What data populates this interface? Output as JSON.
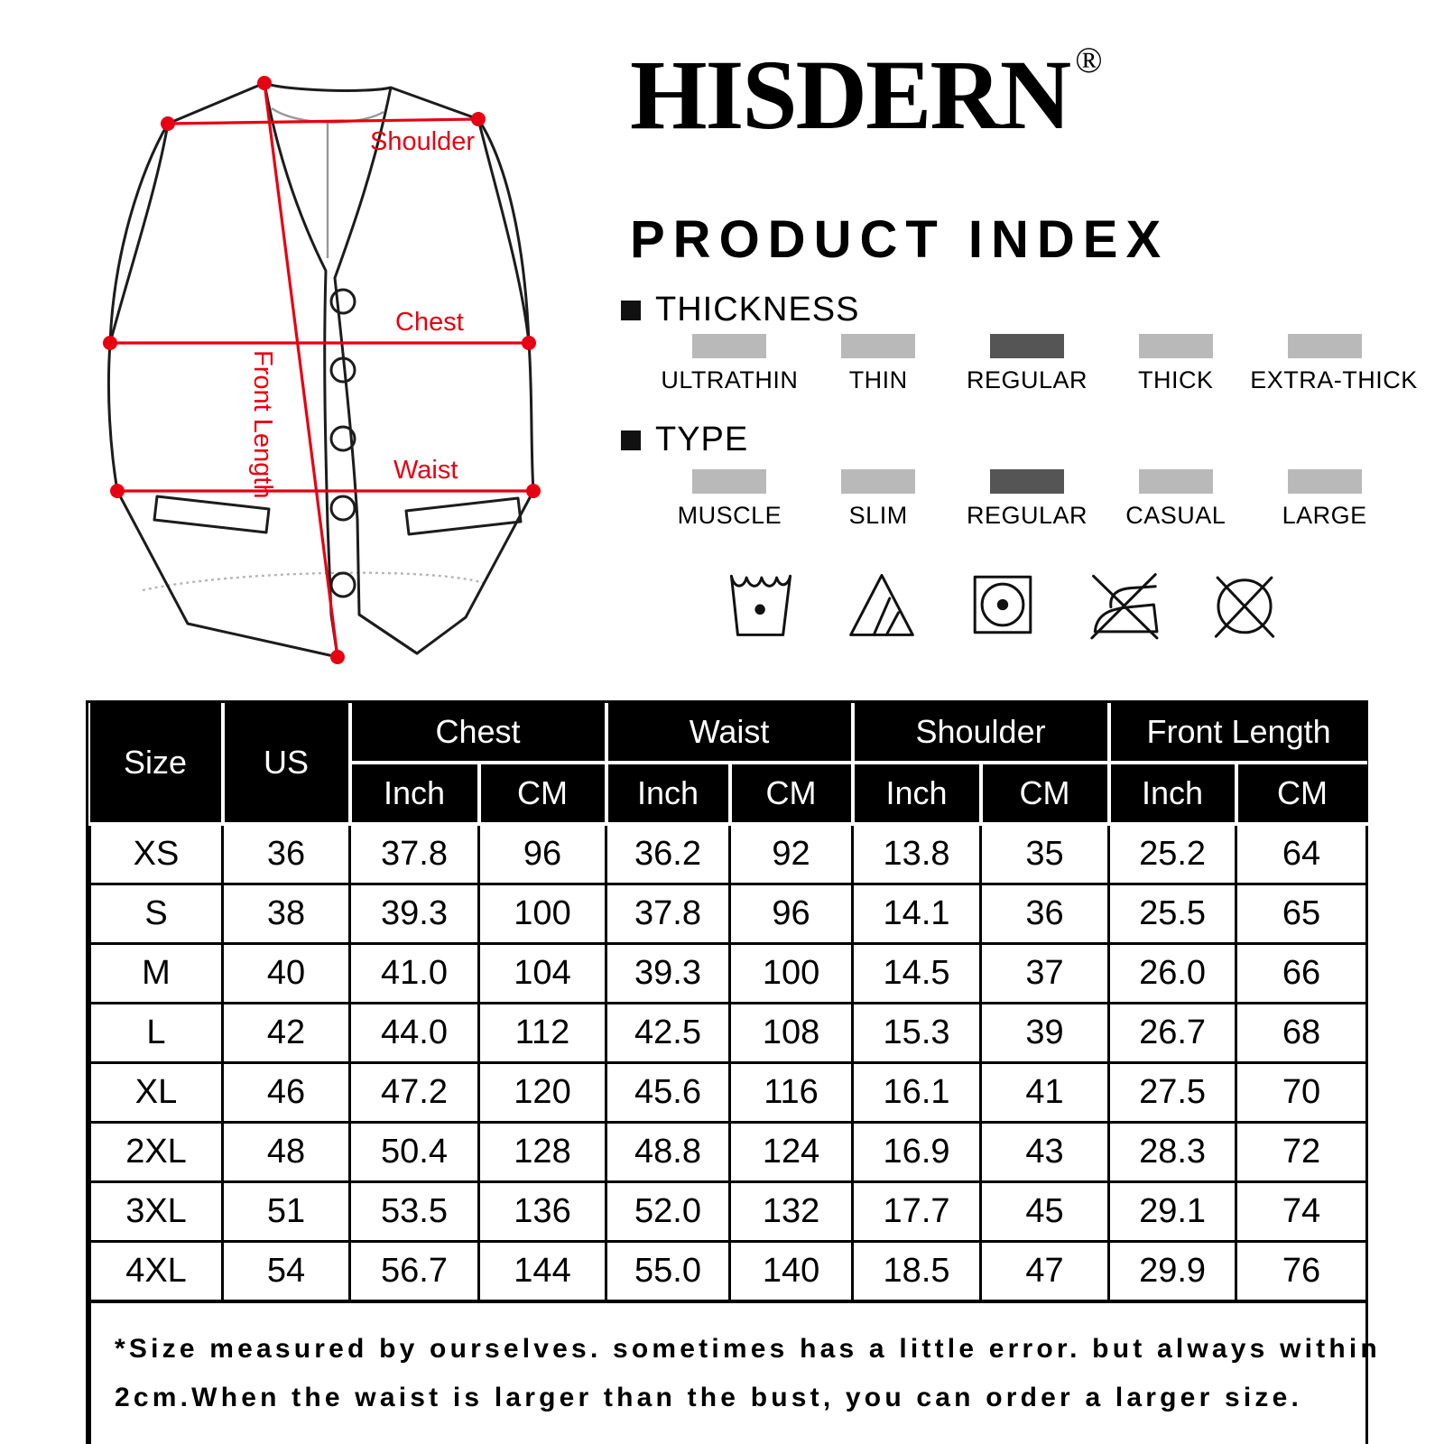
{
  "brand": {
    "name": "HISDERN",
    "registered_mark": "®",
    "tagline": "PRODUCT INDEX"
  },
  "diagram": {
    "shoulder_label": "Shoulder",
    "chest_label": "Chest",
    "waist_label": "Waist",
    "front_length_label": "Front Length",
    "accent_color": "#e60012"
  },
  "thickness_section": {
    "heading": "THICKNESS",
    "swatch_color": "#b9b9b9",
    "selected_color": "#555555",
    "options": [
      {
        "label": "ULTRATHIN",
        "selected": false
      },
      {
        "label": "THIN",
        "selected": false
      },
      {
        "label": "REGULAR",
        "selected": true
      },
      {
        "label": "THICK",
        "selected": false
      },
      {
        "label": "EXTRA-THICK",
        "selected": false
      }
    ]
  },
  "type_section": {
    "heading": "TYPE",
    "options": [
      {
        "label": "MUSCLE",
        "selected": false
      },
      {
        "label": "SLIM",
        "selected": false
      },
      {
        "label": "REGULAR",
        "selected": true
      },
      {
        "label": "CASUAL",
        "selected": false
      },
      {
        "label": "LARGE",
        "selected": false
      }
    ]
  },
  "care_symbols": [
    "machine-wash",
    "non-chlorine-bleach",
    "tumble-dry",
    "do-not-iron",
    "do-not-dry-clean"
  ],
  "size_table": {
    "corner_headers": [
      "Size",
      "US"
    ],
    "group_headers": [
      "Chest",
      "Waist",
      "Shoulder",
      "Front Length"
    ],
    "unit_headers": [
      "Inch",
      "CM"
    ],
    "rows": [
      [
        "XS",
        "36",
        "37.8",
        "96",
        "36.2",
        "92",
        "13.8",
        "35",
        "25.2",
        "64"
      ],
      [
        "S",
        "38",
        "39.3",
        "100",
        "37.8",
        "96",
        "14.1",
        "36",
        "25.5",
        "65"
      ],
      [
        "M",
        "40",
        "41.0",
        "104",
        "39.3",
        "100",
        "14.5",
        "37",
        "26.0",
        "66"
      ],
      [
        "L",
        "42",
        "44.0",
        "112",
        "42.5",
        "108",
        "15.3",
        "39",
        "26.7",
        "68"
      ],
      [
        "XL",
        "46",
        "47.2",
        "120",
        "45.6",
        "116",
        "16.1",
        "41",
        "27.5",
        "70"
      ],
      [
        "2XL",
        "48",
        "50.4",
        "128",
        "48.8",
        "124",
        "16.9",
        "43",
        "28.3",
        "72"
      ],
      [
        "3XL",
        "51",
        "53.5",
        "136",
        "52.0",
        "132",
        "17.7",
        "45",
        "29.1",
        "74"
      ],
      [
        "4XL",
        "54",
        "56.7",
        "144",
        "55.0",
        "140",
        "18.5",
        "47",
        "29.9",
        "76"
      ]
    ],
    "note_line1": "*Size measured by ourselves. sometimes has a little error. but always within",
    "note_line2": "2cm.When the waist is larger than the bust, you can order a larger size."
  }
}
